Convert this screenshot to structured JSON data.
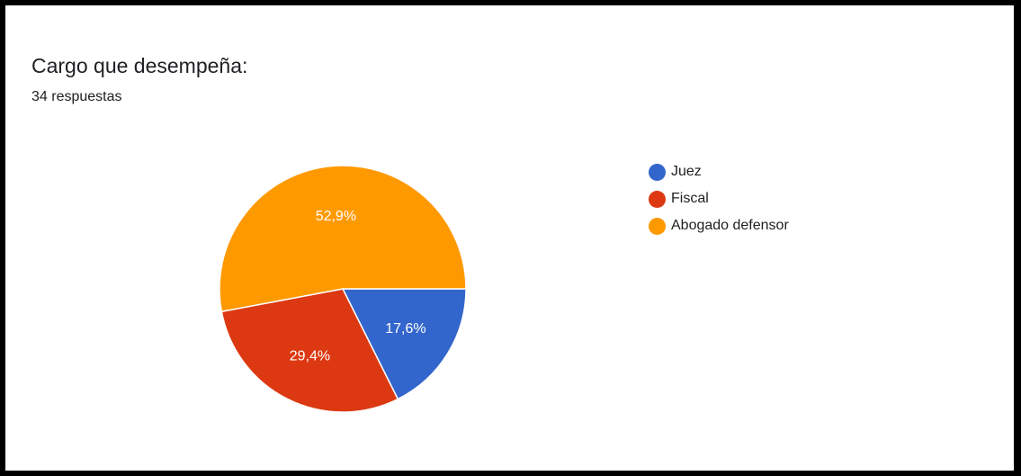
{
  "chart_data": {
    "type": "pie",
    "title": "Cargo que desempeña:",
    "subtitle": "34 respuestas",
    "categories": [
      "Juez",
      "Fiscal",
      "Abogado defensor"
    ],
    "values": [
      17.6,
      29.4,
      52.9
    ],
    "value_labels": [
      "17,6%",
      "29,4%",
      "52,9%"
    ],
    "colors": [
      "#3366cc",
      "#dc3912",
      "#ff9900"
    ],
    "legend_position": "right"
  }
}
